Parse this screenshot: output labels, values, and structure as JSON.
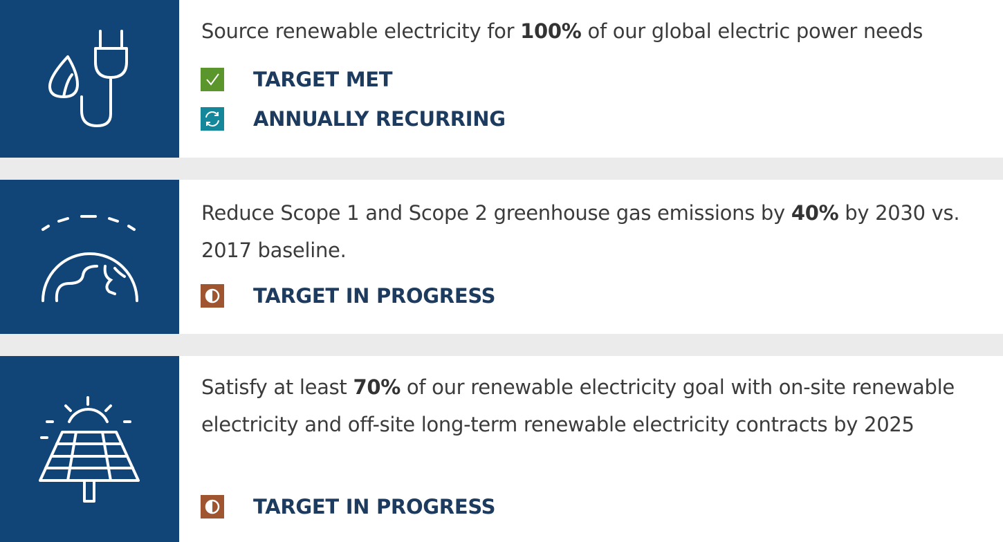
{
  "items": [
    {
      "text_before": "Source renewable electricity for ",
      "highlight": "100%",
      "text_after": " of our global electric power needs",
      "statuses": [
        "TARGET MET",
        "ANNUALLY RECURRING"
      ]
    },
    {
      "text_before": "Reduce Scope 1 and Scope 2 greenhouse gas emissions by ",
      "highlight": "40%",
      "text_after": " by 2030 vs. 2017 baseline.",
      "statuses": [
        "TARGET IN PROGRESS"
      ]
    },
    {
      "text_before": "Satisfy at least ",
      "highlight": "70%",
      "text_after": " of our renewable electricity goal with on-site renewable electricity and off-site long-term renewable electricity contracts by 2025",
      "statuses": [
        "TARGET IN PROGRESS"
      ]
    }
  ]
}
